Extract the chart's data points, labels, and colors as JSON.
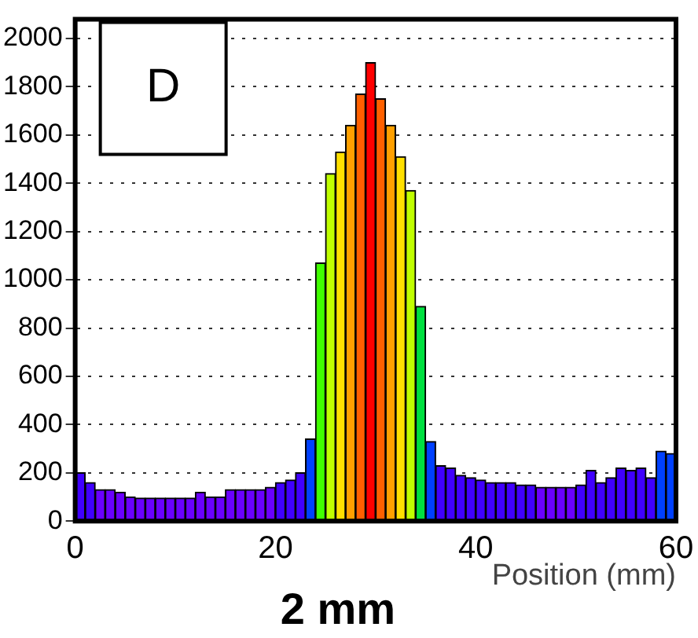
{
  "chart_data": {
    "type": "histogram",
    "title": "2 mm",
    "xlabel": "Position (mm)",
    "annotations": [
      "D"
    ],
    "bins": [
      0,
      1,
      2,
      3,
      4,
      5,
      6,
      7,
      8,
      9,
      10,
      11,
      12,
      13,
      14,
      15,
      16,
      17,
      18,
      19,
      20,
      21,
      22,
      23,
      24,
      25,
      26,
      27,
      28,
      29,
      30,
      31,
      32,
      33,
      34,
      35,
      36,
      37,
      38,
      39,
      40,
      41,
      42,
      43,
      44,
      45,
      46,
      47,
      48,
      49,
      50,
      51,
      52,
      53,
      54,
      55,
      56,
      57,
      58,
      59,
      60
    ],
    "values": [
      200,
      160,
      130,
      130,
      120,
      100,
      95,
      95,
      95,
      95,
      95,
      95,
      120,
      100,
      100,
      130,
      130,
      130,
      130,
      140,
      160,
      170,
      200,
      340,
      1070,
      1440,
      1530,
      1640,
      1770,
      1900,
      1750,
      1640,
      1510,
      1370,
      890,
      330,
      230,
      220,
      190,
      180,
      170,
      160,
      160,
      160,
      150,
      150,
      140,
      140,
      140,
      140,
      150,
      210,
      160,
      180,
      220,
      210,
      220,
      180,
      290,
      280
    ],
    "colors": [
      "#4000ff",
      "#4000ff",
      "#6a00ff",
      "#6a00ff",
      "#6a00ff",
      "#6a00ff",
      "#6a00ff",
      "#6a00ff",
      "#6a00ff",
      "#6a00ff",
      "#6a00ff",
      "#6a00ff",
      "#6a00ff",
      "#6a00ff",
      "#6a00ff",
      "#6a00ff",
      "#6a00ff",
      "#6a00ff",
      "#6a00ff",
      "#6a00ff",
      "#4000ff",
      "#4000ff",
      "#4000ff",
      "#0040ff",
      "#40ff00",
      "#c0ff00",
      "#ffe000",
      "#ffa000",
      "#ff6000",
      "#ff0000",
      "#ff6000",
      "#ffa000",
      "#ffe000",
      "#c0ff00",
      "#00e040",
      "#0040ff",
      "#4000ff",
      "#4000ff",
      "#4000ff",
      "#4000ff",
      "#4000ff",
      "#4000ff",
      "#4000ff",
      "#4000ff",
      "#4000ff",
      "#4000ff",
      "#6a00ff",
      "#6a00ff",
      "#6a00ff",
      "#6a00ff",
      "#4000ff",
      "#4000ff",
      "#4000ff",
      "#4000ff",
      "#4000ff",
      "#4000ff",
      "#4000ff",
      "#4000ff",
      "#0040ff",
      "#0040ff"
    ],
    "xlim": [
      0,
      60
    ],
    "xticks": [
      0,
      20,
      40,
      60
    ],
    "ylim": [
      0,
      2080
    ],
    "yticks": [
      0,
      200,
      400,
      600,
      800,
      1000,
      1200,
      1400,
      1600,
      1800,
      2000
    ],
    "grid": "y",
    "legend": false
  }
}
